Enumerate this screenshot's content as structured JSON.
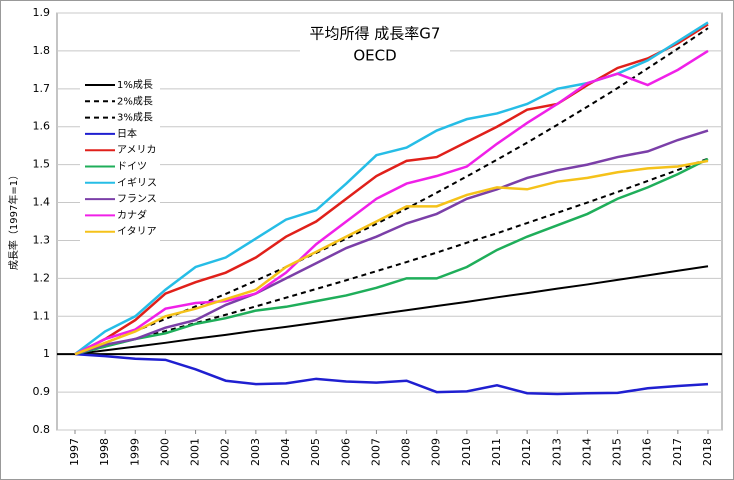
{
  "chart_data": {
    "type": "line",
    "title": "平均所得 成長率G7",
    "subtitle": "OECD",
    "y_label": "成長率（1997年=1）",
    "categories": [
      "1997",
      "1998",
      "1999",
      "2000",
      "2001",
      "2002",
      "2003",
      "2004",
      "2005",
      "2006",
      "2007",
      "2008",
      "2009",
      "2010",
      "2011",
      "2012",
      "2013",
      "2014",
      "2015",
      "2016",
      "2017",
      "2018"
    ],
    "ylim": [
      0.8,
      1.9
    ],
    "yticks": [
      0.8,
      0.9,
      1,
      1.1,
      1.2,
      1.3,
      1.4,
      1.5,
      1.6,
      1.7,
      1.8,
      1.9
    ],
    "reference_line": 1,
    "legend": "upper left",
    "series": [
      {
        "name": "1%成長",
        "color": "#000000",
        "dash": false,
        "values": [
          1,
          1.01,
          1.02,
          1.03,
          1.041,
          1.051,
          1.062,
          1.072,
          1.083,
          1.094,
          1.105,
          1.116,
          1.127,
          1.138,
          1.15,
          1.161,
          1.173,
          1.184,
          1.196,
          1.208,
          1.22,
          1.232
        ]
      },
      {
        "name": "2%成長",
        "color": "#000000",
        "dash": true,
        "values": [
          1,
          1.02,
          1.04,
          1.061,
          1.082,
          1.104,
          1.126,
          1.149,
          1.172,
          1.195,
          1.219,
          1.243,
          1.268,
          1.294,
          1.319,
          1.346,
          1.373,
          1.4,
          1.428,
          1.457,
          1.486,
          1.516
        ]
      },
      {
        "name": "3%成長",
        "color": "#000000",
        "dash": true,
        "values": [
          1,
          1.03,
          1.061,
          1.093,
          1.126,
          1.159,
          1.194,
          1.23,
          1.267,
          1.305,
          1.344,
          1.384,
          1.426,
          1.469,
          1.513,
          1.558,
          1.605,
          1.653,
          1.702,
          1.754,
          1.806,
          1.86
        ]
      },
      {
        "name": "日本",
        "color": "#1f1fd0",
        "dash": false,
        "values": [
          1,
          0.995,
          0.988,
          0.985,
          0.96,
          0.93,
          0.921,
          0.923,
          0.935,
          0.928,
          0.925,
          0.93,
          0.9,
          0.902,
          0.918,
          0.897,
          0.895,
          0.897,
          0.898,
          0.91,
          0.916,
          0.921
        ]
      },
      {
        "name": "アメリカ",
        "color": "#e0201a",
        "dash": false,
        "values": [
          1,
          1.04,
          1.09,
          1.16,
          1.19,
          1.215,
          1.255,
          1.31,
          1.35,
          1.41,
          1.47,
          1.51,
          1.52,
          1.56,
          1.6,
          1.645,
          1.66,
          1.71,
          1.755,
          1.78,
          1.82,
          1.87
        ]
      },
      {
        "name": "ドイツ",
        "color": "#1fae5a",
        "dash": false,
        "values": [
          1,
          1.02,
          1.04,
          1.055,
          1.08,
          1.095,
          1.115,
          1.125,
          1.14,
          1.155,
          1.175,
          1.2,
          1.2,
          1.23,
          1.275,
          1.31,
          1.34,
          1.37,
          1.41,
          1.44,
          1.475,
          1.515
        ]
      },
      {
        "name": "イギリス",
        "color": "#26bde6",
        "dash": false,
        "values": [
          1,
          1.06,
          1.1,
          1.17,
          1.23,
          1.255,
          1.305,
          1.355,
          1.38,
          1.45,
          1.525,
          1.545,
          1.59,
          1.62,
          1.635,
          1.66,
          1.7,
          1.715,
          1.74,
          1.775,
          1.825,
          1.875
        ]
      },
      {
        "name": "フランス",
        "color": "#7b3fa8",
        "dash": false,
        "values": [
          1,
          1.025,
          1.04,
          1.07,
          1.09,
          1.13,
          1.16,
          1.2,
          1.24,
          1.28,
          1.31,
          1.345,
          1.37,
          1.41,
          1.435,
          1.465,
          1.485,
          1.5,
          1.52,
          1.535,
          1.565,
          1.59
        ]
      },
      {
        "name": "カナダ",
        "color": "#f020e8",
        "dash": false,
        "values": [
          1,
          1.04,
          1.065,
          1.12,
          1.135,
          1.14,
          1.16,
          1.215,
          1.29,
          1.35,
          1.41,
          1.45,
          1.47,
          1.495,
          1.555,
          1.61,
          1.66,
          1.715,
          1.74,
          1.71,
          1.75,
          1.8
        ]
      },
      {
        "name": "イタリア",
        "color": "#f5c21a",
        "dash": false,
        "values": [
          1,
          1.03,
          1.06,
          1.1,
          1.12,
          1.145,
          1.17,
          1.23,
          1.27,
          1.31,
          1.35,
          1.39,
          1.39,
          1.42,
          1.44,
          1.435,
          1.455,
          1.465,
          1.48,
          1.49,
          1.495,
          1.51
        ]
      }
    ]
  }
}
